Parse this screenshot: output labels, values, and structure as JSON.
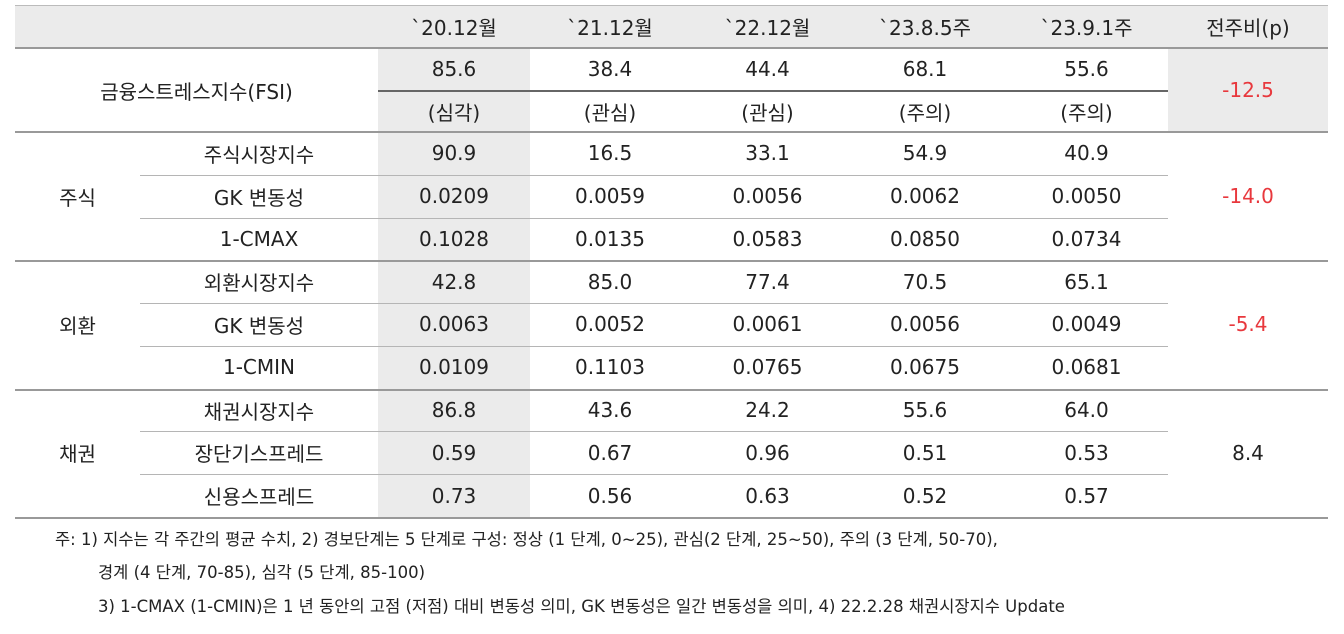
{
  "table": {
    "header": [
      "`20.12월",
      "`21.12월",
      "`22.12월",
      "`23.8.5주",
      "`23.9.1주",
      "전주비(p)"
    ],
    "fsi": {
      "label": "금융스트레스지수(FSI)",
      "values": [
        "85.6",
        "38.4",
        "44.4",
        "68.1",
        "55.6"
      ],
      "levels": [
        "(심각)",
        "(관심)",
        "(관심)",
        "(주의)",
        "(주의)"
      ],
      "change": "-12.5",
      "change_color": "#e8383d"
    },
    "groups": [
      {
        "name": "주식",
        "change": "-14.0",
        "change_color": "#e8383d",
        "rows": [
          {
            "label": "주식시장지수",
            "values": [
              "90.9",
              "16.5",
              "33.1",
              "54.9",
              "40.9"
            ]
          },
          {
            "label": "GK 변동성",
            "values": [
              "0.0209",
              "0.0059",
              "0.0056",
              "0.0062",
              "0.0050"
            ]
          },
          {
            "label": "1-CMAX",
            "values": [
              "0.1028",
              "0.0135",
              "0.0583",
              "0.0850",
              "0.0734"
            ]
          }
        ]
      },
      {
        "name": "외환",
        "change": "-5.4",
        "change_color": "#e8383d",
        "rows": [
          {
            "label": "외환시장지수",
            "values": [
              "42.8",
              "85.0",
              "77.4",
              "70.5",
              "65.1"
            ]
          },
          {
            "label": "GK 변동성",
            "values": [
              "0.0063",
              "0.0052",
              "0.0061",
              "0.0056",
              "0.0049"
            ]
          },
          {
            "label": "1-CMIN",
            "values": [
              "0.0109",
              "0.1103",
              "0.0765",
              "0.0675",
              "0.0681"
            ]
          }
        ]
      },
      {
        "name": "채권",
        "change": "8.4",
        "change_color": "#222222",
        "rows": [
          {
            "label": "채권시장지수",
            "values": [
              "86.8",
              "43.6",
              "24.2",
              "55.6",
              "64.0"
            ]
          },
          {
            "label": "장단기스프레드",
            "values": [
              "0.59",
              "0.67",
              "0.96",
              "0.51",
              "0.53"
            ]
          },
          {
            "label": "신용스프레드",
            "values": [
              "0.73",
              "0.56",
              "0.63",
              "0.52",
              "0.57"
            ]
          }
        ]
      }
    ]
  },
  "notes": [
    "주: 1) 지수는 각 주간의 평균 수치, 2) 경보단계는 5 단계로 구성: 정상 (1 단계, 0~25), 관심(2 단계, 25~50), 주의 (3 단계, 50-70),",
    "경계 (4 단계, 70-85), 심각 (5 단계, 85-100)",
    "3) 1-CMAX (1-CMIN)은 1 년 동안의 고점 (저점) 대비 변동성 의미, GK 변동성은 일간 변동성을 의미, 4) 22.2.28 채권시장지수 Update"
  ]
}
